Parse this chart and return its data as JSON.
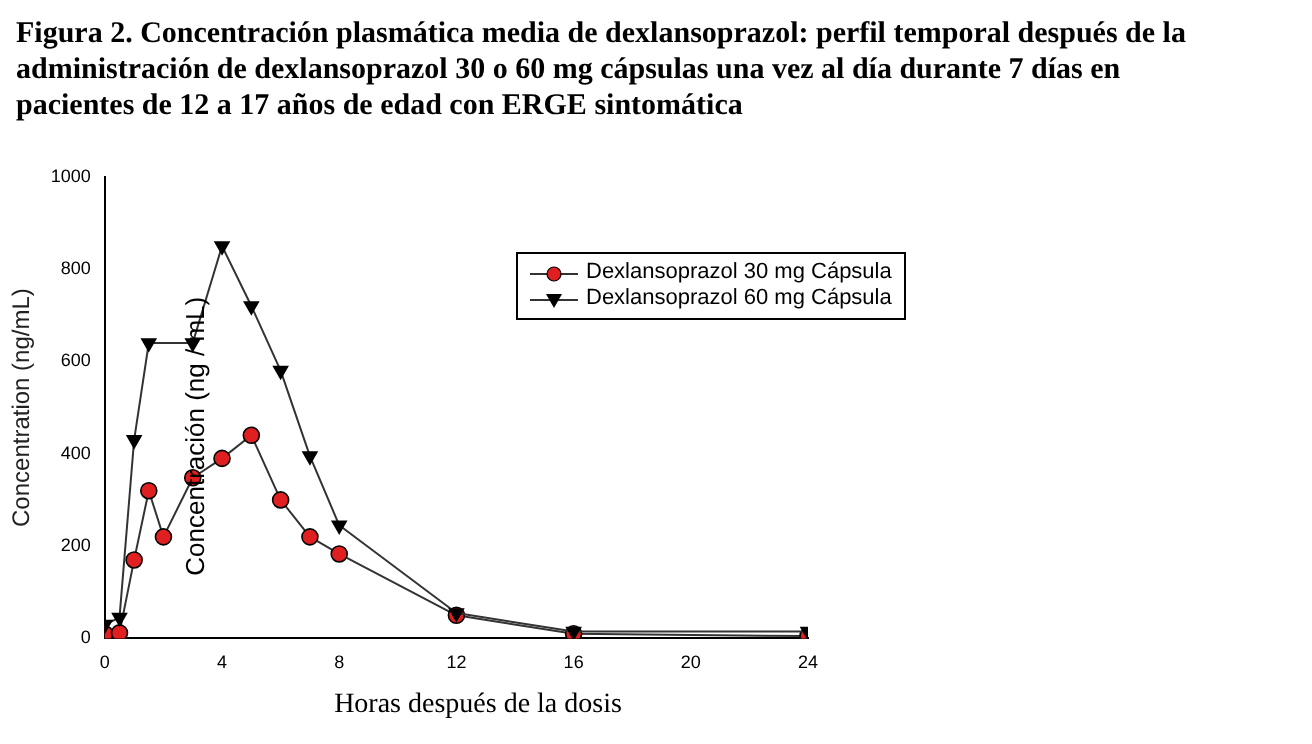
{
  "chart_data": {
    "type": "line",
    "title": "Figura 2. Concentración plasmática media de dexlansoprazol: perfil temporal después de la administración de dexlansoprazol 30 o 60 mg cápsulas una vez al día durante 7 días en pacientes de 12 a 17 años  de edad con ERGE sintomática",
    "xlabel": "Horas después de la dosis",
    "ylabel": "Concentration (ng/mL)",
    "annotations": [
      "Concentración (ng / mL)"
    ],
    "xlim": [
      0,
      24
    ],
    "xticks": [
      0,
      4,
      8,
      12,
      16,
      20,
      24
    ],
    "ylim": [
      0,
      1000
    ],
    "yticks": [
      0,
      200,
      400,
      600,
      800,
      1000
    ],
    "grid": false,
    "legend": "top right",
    "series": [
      {
        "name": "Dexlansoprazol 30 mg Cápsula",
        "color": "#e02020",
        "marker": "circle",
        "x": [
          0,
          0.5,
          1,
          1.5,
          2,
          3,
          4,
          5,
          6,
          7,
          8,
          12,
          16,
          24
        ],
        "values": [
          10,
          12,
          170,
          320,
          220,
          348,
          390,
          440,
          300,
          220,
          183,
          50,
          10,
          5
        ]
      },
      {
        "name": "Dexlansoprazol 60 mg Cápsula",
        "color": "#000000",
        "marker": "triangle",
        "x": [
          0,
          0.5,
          1,
          1.5,
          3,
          4,
          5,
          6,
          7,
          8,
          12,
          16,
          24
        ],
        "values": [
          30,
          45,
          430,
          640,
          640,
          850,
          720,
          580,
          395,
          245,
          55,
          15,
          15
        ]
      }
    ]
  }
}
